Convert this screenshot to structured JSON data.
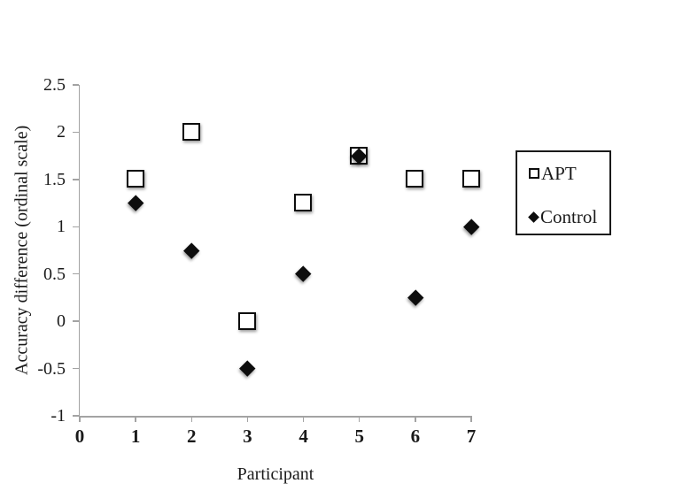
{
  "chart_data": {
    "type": "scatter",
    "title": "",
    "xlabel": "Participant",
    "ylabel": "Accuracy difference (ordinal scale)",
    "x": [
      1,
      2,
      3,
      4,
      5,
      6,
      7
    ],
    "series": [
      {
        "name": "APT",
        "marker": "open-square",
        "values": [
          1.5,
          2,
          0,
          1.25,
          1.75,
          1.5,
          1.5
        ]
      },
      {
        "name": "Control",
        "marker": "filled-diamond",
        "values": [
          1.25,
          0.75,
          -0.5,
          0.5,
          1.75,
          0.25,
          1
        ]
      }
    ],
    "xlim": [
      0,
      7
    ],
    "ylim": [
      -1,
      2.5
    ],
    "x_ticks": [
      0,
      1,
      2,
      3,
      4,
      5,
      6,
      7
    ],
    "y_ticks": [
      2.5,
      2,
      1.5,
      1,
      0.5,
      0,
      -0.5,
      -1
    ],
    "grid": false,
    "legend_position": "right"
  },
  "colors": {
    "axis": "#a3a3a3",
    "marker": "#0d0d0d",
    "text": "#1a1a1a",
    "background": "#ffffff"
  }
}
